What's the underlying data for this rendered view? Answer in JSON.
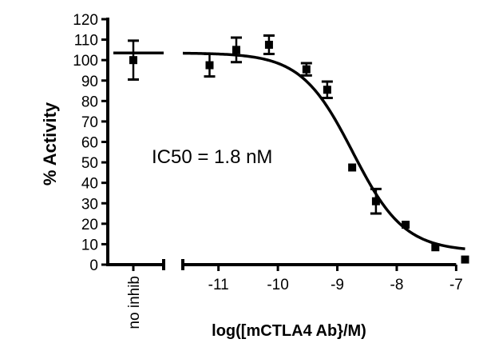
{
  "chart_data": {
    "type": "scatter",
    "title": "",
    "xlabel": "log([mCTLA4 Ab}/M)",
    "ylabel": "% Activity",
    "annotation": "IC50 = 1.8 nM",
    "xlim": [
      -11.6,
      -6.75
    ],
    "ylim": [
      0,
      120
    ],
    "x_ticks": [
      -11,
      -10,
      -9,
      -8,
      -7
    ],
    "x_tick_labels": [
      "-11",
      "-10",
      "-9",
      "-8",
      "-7"
    ],
    "y_ticks": [
      0,
      10,
      20,
      30,
      40,
      50,
      60,
      70,
      80,
      90,
      100,
      110,
      120
    ],
    "y_tick_labels": [
      "0",
      "10",
      "20",
      "30",
      "40",
      "50",
      "60",
      "70",
      "80",
      "90",
      "100",
      "110",
      "120"
    ],
    "control": {
      "label": "no inhib",
      "y": 100,
      "error": 9.5
    },
    "points": [
      {
        "x": -11.15,
        "y": 97.5,
        "error": 5.5
      },
      {
        "x": -10.7,
        "y": 105,
        "error": 6
      },
      {
        "x": -10.15,
        "y": 107.5,
        "error": 4.5
      },
      {
        "x": -9.52,
        "y": 95.5,
        "error": 3
      },
      {
        "x": -9.17,
        "y": 85.5,
        "error": 4
      },
      {
        "x": -8.75,
        "y": 47.5,
        "error": 0
      },
      {
        "x": -8.35,
        "y": 31,
        "error": 6
      },
      {
        "x": -7.85,
        "y": 19.5,
        "error": 0
      },
      {
        "x": -7.35,
        "y": 8.5,
        "error": 0
      },
      {
        "x": -6.85,
        "y": 2.5,
        "error": 0
      }
    ],
    "fit": {
      "model": "sigmoidal dose-response",
      "top": 103.5,
      "bottom": 6.5,
      "logIC50": -8.74,
      "hill": -1.0,
      "control_line_y": 103.5
    },
    "grid": false,
    "legend": "none",
    "colors": {
      "marker": "#000000",
      "line": "#000000",
      "background": "#ffffff"
    }
  }
}
